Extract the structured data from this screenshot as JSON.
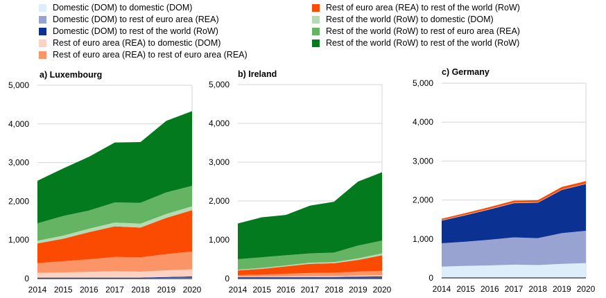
{
  "legend": [
    {
      "label": "Domestic (DOM) to domestic (DOM)",
      "color": "#ddeefa"
    },
    {
      "label": "Domestic (DOM) to rest of euro area (REA)",
      "color": "#99a3d1"
    },
    {
      "label": "Domestic (DOM) to rest of the world (RoW)",
      "color": "#0b3192"
    },
    {
      "label": "Rest of euro area (REA) to domestic (DOM)",
      "color": "#fdd2c0"
    },
    {
      "label": "Rest of euro area (REA) to rest of euro area (REA)",
      "color": "#fb9466"
    },
    {
      "label": "Rest of euro area (REA) to rest of the world (RoW)",
      "color": "#fb4b02"
    },
    {
      "label": "Rest of the world (RoW) to domestic (DOM)",
      "color": "#b4dcb4"
    },
    {
      "label": "Rest of the world (RoW) to rest of euro area (REA)",
      "color": "#64b464"
    },
    {
      "label": "Rest of the world (RoW) to rest of the world (RoW)",
      "color": "#037a1e"
    }
  ],
  "chart_data": [
    {
      "type": "area",
      "stacked": true,
      "title": "a) Luxembourg",
      "x": [
        "2014",
        "2015",
        "2016",
        "2017",
        "2018",
        "2019",
        "2020"
      ],
      "ylim": [
        0,
        5000
      ],
      "yticks": [
        "0",
        "1,000",
        "2,000",
        "3,000",
        "4,000",
        "5,000"
      ],
      "grid": true,
      "series": [
        {
          "name": "Domestic (DOM) to domestic (DOM)",
          "values": [
            10,
            10,
            10,
            10,
            10,
            15,
            20
          ]
        },
        {
          "name": "Domestic (DOM) to rest of euro area (REA)",
          "values": [
            5,
            5,
            5,
            5,
            5,
            5,
            5
          ]
        },
        {
          "name": "Domestic (DOM) to rest of the world (RoW)",
          "values": [
            10,
            10,
            10,
            10,
            10,
            20,
            30
          ]
        },
        {
          "name": "Rest of euro area (REA) to domestic (DOM)",
          "values": [
            125,
            135,
            150,
            165,
            155,
            175,
            185
          ]
        },
        {
          "name": "Rest of euro area (REA) to rest of euro area (REA)",
          "values": [
            250,
            290,
            325,
            370,
            370,
            420,
            460
          ]
        },
        {
          "name": "Rest of euro area (REA) to rest of the world (RoW)",
          "values": [
            510,
            580,
            700,
            790,
            770,
            935,
            1070
          ]
        },
        {
          "name": "Rest of the world (RoW) to domestic (DOM)",
          "values": [
            70,
            80,
            90,
            100,
            100,
            100,
            100
          ]
        },
        {
          "name": "Rest of the world (RoW) to rest of euro area (REA)",
          "values": [
            450,
            510,
            470,
            520,
            540,
            560,
            530
          ]
        },
        {
          "name": "Rest of the world (RoW) to rest of the world (RoW)",
          "values": [
            1100,
            1230,
            1390,
            1550,
            1570,
            1850,
            1930
          ]
        }
      ]
    },
    {
      "type": "area",
      "stacked": true,
      "title": "b) Ireland",
      "x": [
        "2014",
        "2015",
        "2016",
        "2017",
        "2018",
        "2019",
        "2020"
      ],
      "ylim": [
        0,
        5000
      ],
      "yticks": [
        "0",
        "1,000",
        "2,000",
        "3,000",
        "4,000",
        "5,000"
      ],
      "grid": true,
      "series": [
        {
          "name": "Domestic (DOM) to domestic (DOM)",
          "values": [
            10,
            10,
            10,
            10,
            10,
            10,
            10
          ]
        },
        {
          "name": "Domestic (DOM) to rest of euro area (REA)",
          "values": [
            10,
            10,
            10,
            10,
            10,
            10,
            15
          ]
        },
        {
          "name": "Domestic (DOM) to rest of the world (RoW)",
          "values": [
            15,
            15,
            15,
            20,
            20,
            30,
            30
          ]
        },
        {
          "name": "Rest of euro area (REA) to domestic (DOM)",
          "values": [
            15,
            15,
            20,
            25,
            25,
            30,
            35
          ]
        },
        {
          "name": "Rest of euro area (REA) to rest of euro area (REA)",
          "values": [
            40,
            50,
            70,
            80,
            90,
            100,
            110
          ]
        },
        {
          "name": "Rest of euro area (REA) to rest of the world (RoW)",
          "values": [
            120,
            150,
            190,
            235,
            240,
            300,
            400
          ]
        },
        {
          "name": "Rest of the world (RoW) to domestic (DOM)",
          "values": [
            20,
            25,
            25,
            30,
            30,
            40,
            50
          ]
        },
        {
          "name": "Rest of the world (RoW) to rest of euro area (REA)",
          "values": [
            270,
            275,
            260,
            240,
            245,
            330,
            330
          ]
        },
        {
          "name": "Rest of the world (RoW) to rest of the world (RoW)",
          "values": [
            920,
            1030,
            1040,
            1230,
            1310,
            1650,
            1760
          ]
        }
      ]
    },
    {
      "type": "area",
      "stacked": true,
      "title": "c) Germany",
      "x": [
        "2014",
        "2015",
        "2016",
        "2017",
        "2018",
        "2019",
        "2020"
      ],
      "ylim": [
        0,
        5000
      ],
      "yticks": [
        "0",
        "1,000",
        "2,000",
        "3,000",
        "4,000",
        "5,000"
      ],
      "grid": true,
      "series": [
        {
          "name": "Domestic (DOM) to domestic (DOM)",
          "values": [
            290,
            310,
            320,
            340,
            330,
            360,
            380
          ]
        },
        {
          "name": "Domestic (DOM) to rest of euro area (REA)",
          "values": [
            600,
            620,
            660,
            700,
            690,
            790,
            830
          ]
        },
        {
          "name": "Domestic (DOM) to rest of the world (RoW)",
          "values": [
            580,
            680,
            780,
            880,
            910,
            1110,
            1200
          ]
        },
        {
          "name": "Rest of euro area (REA) to domestic (DOM)",
          "values": [
            5,
            5,
            5,
            5,
            5,
            5,
            5
          ]
        },
        {
          "name": "Rest of euro area (REA) to rest of euro area (REA)",
          "values": [
            10,
            10,
            10,
            10,
            10,
            10,
            10
          ]
        },
        {
          "name": "Rest of euro area (REA) to rest of the world (RoW)",
          "values": [
            35,
            40,
            45,
            50,
            50,
            60,
            60
          ]
        },
        {
          "name": "Rest of the world (RoW) to domestic (DOM)",
          "values": [
            0,
            0,
            0,
            0,
            0,
            0,
            0
          ]
        },
        {
          "name": "Rest of the world (RoW) to rest of euro area (REA)",
          "values": [
            0,
            0,
            0,
            0,
            0,
            0,
            0
          ]
        },
        {
          "name": "Rest of the world (RoW) to rest of the world (RoW)",
          "values": [
            0,
            0,
            0,
            0,
            0,
            0,
            0
          ]
        }
      ]
    }
  ]
}
